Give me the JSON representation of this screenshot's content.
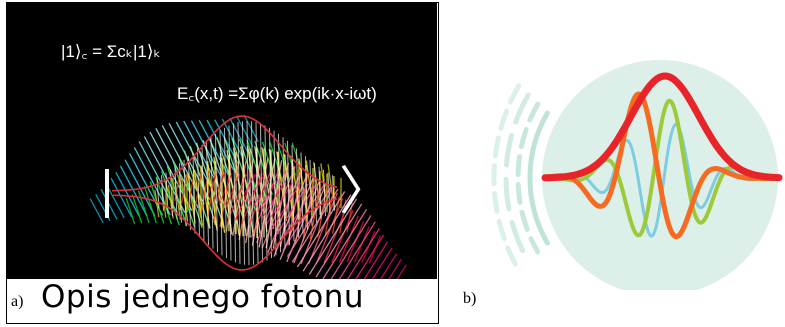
{
  "panel_a": {
    "label": "a)",
    "caption": "Opis jednego fotonu",
    "equation_1": "|1⟩꜀ = Σcₖ|1⟩ₖ",
    "equation_2": "E꜀(x,t) =Σφ(k) exp(ik·x-iωt)",
    "background": "#000000",
    "envelope_color": "#e0303a",
    "bracket_glyph": "〉"
  },
  "panel_b": {
    "label": "b)",
    "colors": {
      "main_pulse": "#e8232a",
      "orange_wave": "#f46b21",
      "green_wave": "#9ec93a",
      "blue_wave": "#7ccde0",
      "circle_fill": "#dcefe9",
      "arcs": "#bfe3d9"
    }
  }
}
